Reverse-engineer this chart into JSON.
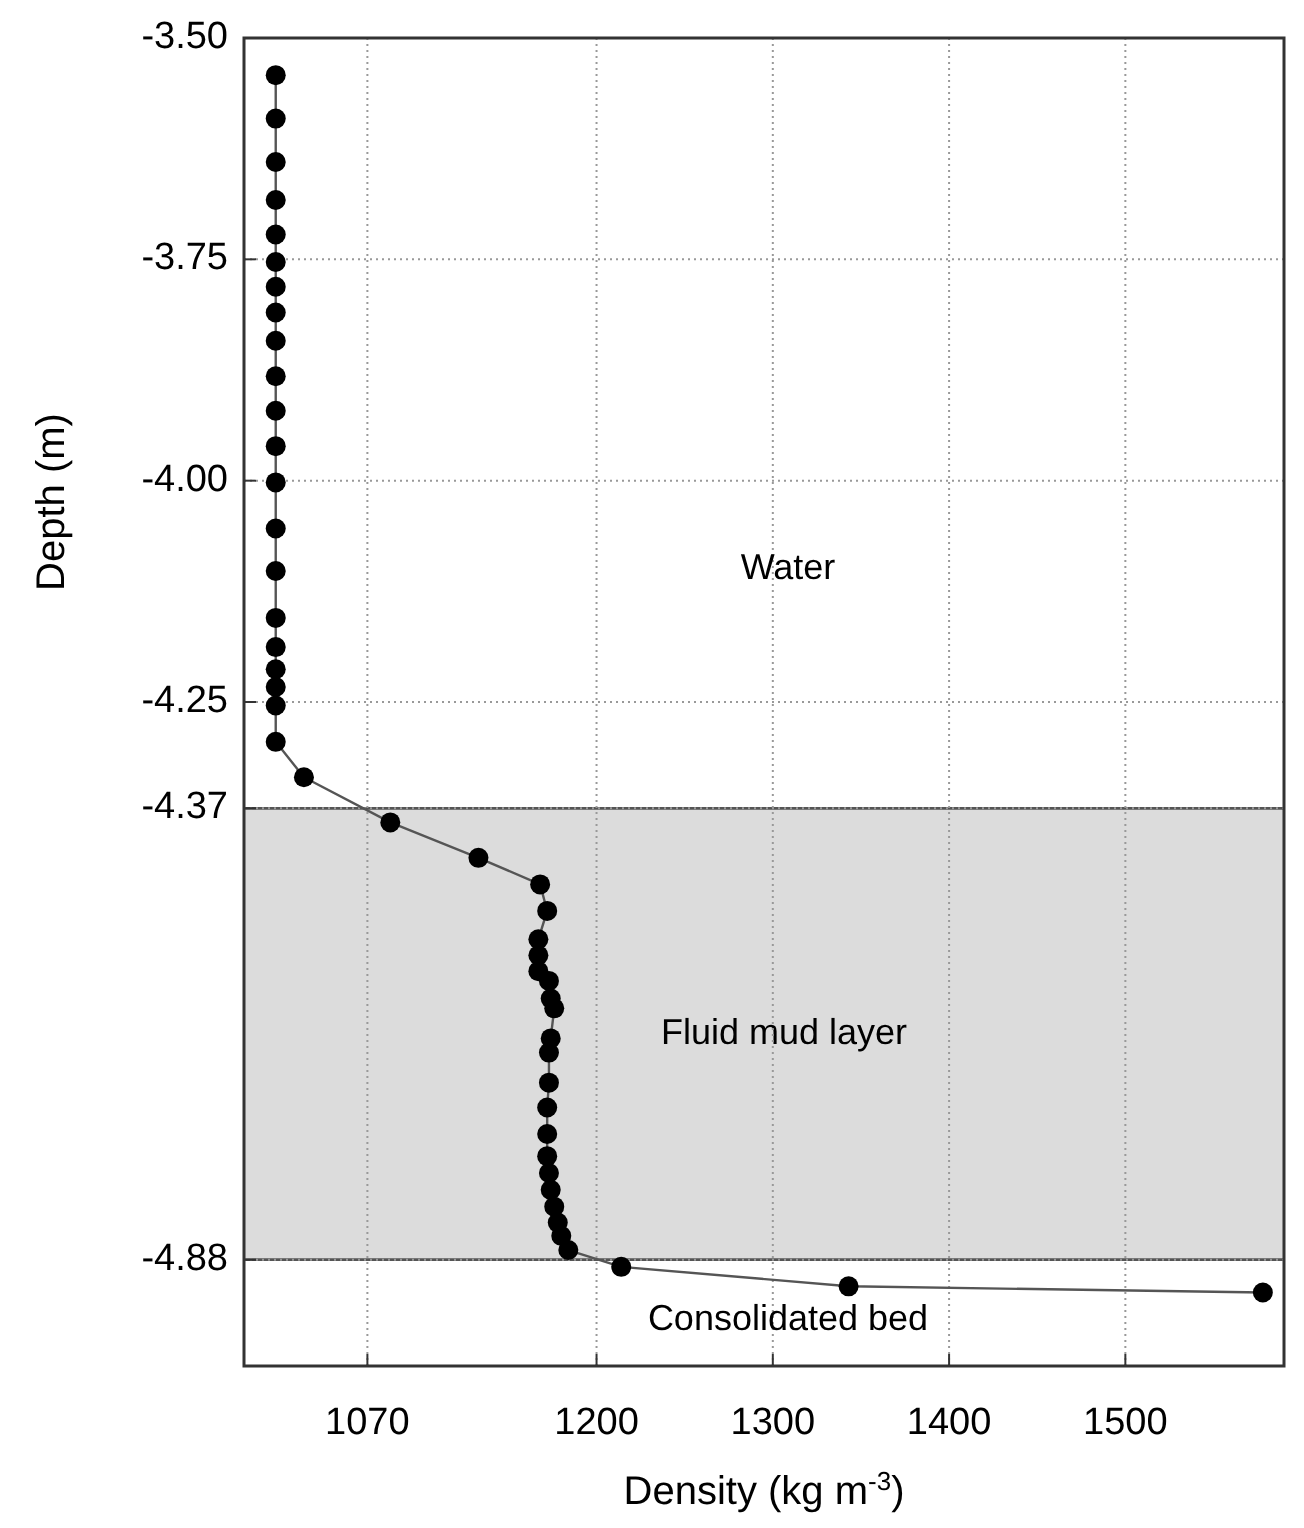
{
  "chart_data": {
    "type": "line",
    "xlabel": "Density (kg m$^{-3}$)",
    "ylabel": "Depth (m)",
    "xlim": [
      1000,
      1590
    ],
    "xticks": [
      1070,
      1200,
      1300,
      1400,
      1500
    ],
    "ylim": [
      -5.0,
      -3.5
    ],
    "yticks": [
      {
        "value": -3.5,
        "label": "-3.50"
      },
      -3.75,
      {
        "value": -4.0,
        "label": "-4.00"
      },
      -4.25,
      -4.37,
      -4.88
    ],
    "grid": true,
    "marker": "circle",
    "line_style": "solid",
    "series": [
      {
        "color": "#000000",
        "x": [
          1018,
          1018,
          1018,
          1018,
          1018,
          1018,
          1018,
          1018,
          1018,
          1018,
          1018,
          1018,
          1018,
          1018,
          1018,
          1018,
          1018,
          1018,
          1018,
          1018,
          1018,
          1034,
          1083,
          1133,
          1168,
          1172,
          1167,
          1167,
          1167,
          1173,
          1174,
          1176,
          1174,
          1173,
          1173,
          1172,
          1172,
          1172,
          1173,
          1174,
          1176,
          1178,
          1180,
          1184,
          1214,
          1343,
          1578
        ],
        "values": [
          -3.542,
          -3.591,
          -3.64,
          -3.683,
          -3.722,
          -3.753,
          -3.781,
          -3.81,
          -3.842,
          -3.882,
          -3.921,
          -3.961,
          -4.002,
          -4.054,
          -4.102,
          -4.155,
          -4.188,
          -4.213,
          -4.233,
          -4.254,
          -4.295,
          -4.335,
          -4.386,
          -4.426,
          -4.456,
          -4.486,
          -4.518,
          -4.536,
          -4.554,
          -4.565,
          -4.585,
          -4.596,
          -4.63,
          -4.646,
          -4.68,
          -4.708,
          -4.738,
          -4.763,
          -4.782,
          -4.801,
          -4.82,
          -4.838,
          -4.853,
          -4.869,
          -4.888,
          -4.91,
          -4.917
        ]
      }
    ],
    "bands": [
      {
        "axis": "y",
        "from": -4.37,
        "to": -4.88,
        "label": "Fluid mud layer",
        "color": "#dcdcdc"
      }
    ],
    "annotations": [
      "Water",
      "Consolidated bed"
    ]
  }
}
